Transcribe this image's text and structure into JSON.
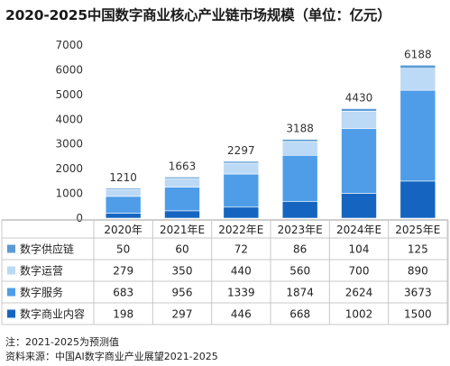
{
  "title": "2020-2025中国数字商业核心产业链市场规模（单位：亿元）",
  "notes": {
    "note": "注：2021-2025为预测值",
    "source": "资料来源：中国AI数字商业产业展望2021-2025"
  },
  "colors": {
    "grid": "#c8c8c8"
  },
  "chart_data": {
    "type": "bar",
    "stacked": true,
    "categories": [
      "2020年",
      "2021年E",
      "2022年E",
      "2023年E",
      "2024年E",
      "2025年E"
    ],
    "ylim": [
      0,
      7000
    ],
    "yticks": [
      0,
      1000,
      2000,
      3000,
      4000,
      5000,
      6000,
      7000
    ],
    "totals": [
      1210,
      1663,
      2297,
      3188,
      4430,
      6188
    ],
    "series": [
      {
        "name": "数字商业内容",
        "values": [
          198,
          297,
          446,
          668,
          1002,
          1500
        ],
        "color": "#1565c0"
      },
      {
        "name": "数字服务",
        "values": [
          683,
          956,
          1339,
          1874,
          2624,
          3673
        ],
        "color": "#4f9de8"
      },
      {
        "name": "数字运营",
        "values": [
          279,
          350,
          440,
          560,
          700,
          890
        ],
        "color": "#bcd9f5"
      },
      {
        "name": "数字供应链",
        "values": [
          50,
          60,
          72,
          86,
          104,
          125
        ],
        "color": "#5b9bd5"
      }
    ],
    "table_row_order": [
      "数字供应链",
      "数字运营",
      "数字服务",
      "数字商业内容"
    ]
  }
}
